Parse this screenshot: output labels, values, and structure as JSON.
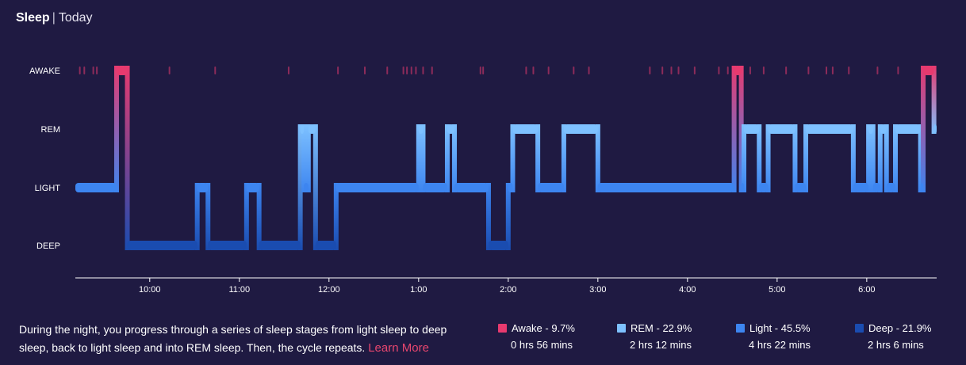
{
  "header": {
    "title": "Sleep",
    "separator": "|",
    "period": "Today"
  },
  "colors": {
    "background": "#1f1a42",
    "awake": "#e73a6f",
    "rem": "#7ec1ff",
    "light": "#3d85f0",
    "deep": "#1a4cb0",
    "link": "#e8466f"
  },
  "chart_data": {
    "type": "hypnogram",
    "stages": [
      "AWAKE",
      "REM",
      "LIGHT",
      "DEEP"
    ],
    "x_ticks": [
      "10:00",
      "11:00",
      "12:00",
      "1:00",
      "2:00",
      "3:00",
      "4:00",
      "5:00",
      "6:00"
    ],
    "x_range_hours": [
      9.17,
      18.78
    ],
    "segments": [
      {
        "stage": "LIGHT",
        "start": 9.17,
        "end": 9.63
      },
      {
        "stage": "AWAKE",
        "start": 9.63,
        "end": 9.75
      },
      {
        "stage": "DEEP",
        "start": 9.75,
        "end": 10.53
      },
      {
        "stage": "LIGHT",
        "start": 10.53,
        "end": 10.65
      },
      {
        "stage": "DEEP",
        "start": 10.65,
        "end": 11.08
      },
      {
        "stage": "LIGHT",
        "start": 11.08,
        "end": 11.22
      },
      {
        "stage": "DEEP",
        "start": 11.22,
        "end": 11.68
      },
      {
        "stage": "REM",
        "start": 11.68,
        "end": 11.72
      },
      {
        "stage": "LIGHT",
        "start": 11.72,
        "end": 11.77
      },
      {
        "stage": "REM",
        "start": 11.77,
        "end": 11.85
      },
      {
        "stage": "DEEP",
        "start": 11.85,
        "end": 12.08
      },
      {
        "stage": "LIGHT",
        "start": 12.08,
        "end": 13.0
      },
      {
        "stage": "REM",
        "start": 13.0,
        "end": 13.05
      },
      {
        "stage": "LIGHT",
        "start": 13.05,
        "end": 13.32
      },
      {
        "stage": "REM",
        "start": 13.32,
        "end": 13.4
      },
      {
        "stage": "LIGHT",
        "start": 13.4,
        "end": 13.78
      },
      {
        "stage": "DEEP",
        "start": 13.78,
        "end": 14.0
      },
      {
        "stage": "LIGHT",
        "start": 14.0,
        "end": 14.05
      },
      {
        "stage": "REM",
        "start": 14.05,
        "end": 14.33
      },
      {
        "stage": "LIGHT",
        "start": 14.33,
        "end": 14.62
      },
      {
        "stage": "REM",
        "start": 14.62,
        "end": 15.0
      },
      {
        "stage": "LIGHT",
        "start": 15.0,
        "end": 16.52
      },
      {
        "stage": "AWAKE",
        "start": 16.52,
        "end": 16.6
      },
      {
        "stage": "LIGHT",
        "start": 16.6,
        "end": 16.63
      },
      {
        "stage": "REM",
        "start": 16.63,
        "end": 16.8
      },
      {
        "stage": "LIGHT",
        "start": 16.8,
        "end": 16.9
      },
      {
        "stage": "REM",
        "start": 16.9,
        "end": 17.2
      },
      {
        "stage": "LIGHT",
        "start": 17.2,
        "end": 17.32
      },
      {
        "stage": "REM",
        "start": 17.32,
        "end": 17.85
      },
      {
        "stage": "LIGHT",
        "start": 17.85,
        "end": 18.02
      },
      {
        "stage": "REM",
        "start": 18.02,
        "end": 18.07
      },
      {
        "stage": "LIGHT",
        "start": 18.07,
        "end": 18.15
      },
      {
        "stage": "REM",
        "start": 18.15,
        "end": 18.22
      },
      {
        "stage": "LIGHT",
        "start": 18.22,
        "end": 18.32
      },
      {
        "stage": "REM",
        "start": 18.32,
        "end": 18.6
      },
      {
        "stage": "LIGHT",
        "start": 18.6,
        "end": 18.63
      },
      {
        "stage": "AWAKE",
        "start": 18.63,
        "end": 18.75
      },
      {
        "stage": "REM",
        "start": 18.75,
        "end": 18.78
      }
    ],
    "awake_blips": [
      9.22,
      9.27,
      9.37,
      9.41,
      10.22,
      10.73,
      11.55,
      12.1,
      12.4,
      12.65,
      12.83,
      12.87,
      12.92,
      12.97,
      13.05,
      13.15,
      13.69,
      13.72,
      14.2,
      14.28,
      14.45,
      14.73,
      14.9,
      15.58,
      15.72,
      15.82,
      15.9,
      16.08,
      16.35,
      16.45,
      16.7,
      16.85,
      17.1,
      17.35,
      17.55,
      17.62,
      17.8,
      18.12,
      18.35
    ]
  },
  "description": {
    "text": "During the night, you progress through a series of sleep stages from light sleep to deep sleep, back to light sleep and into REM sleep. Then, the cycle repeats.",
    "link": "Learn More"
  },
  "legend": [
    {
      "label": "Awake - 9.7%",
      "duration": "0 hrs 56 mins",
      "color": "#e73a6f"
    },
    {
      "label": "REM - 22.9%",
      "duration": "2 hrs 12 mins",
      "color": "#7ec1ff"
    },
    {
      "label": "Light - 45.5%",
      "duration": "4 hrs 22 mins",
      "color": "#3d85f0"
    },
    {
      "label": "Deep - 21.9%",
      "duration": "2 hrs 6 mins",
      "color": "#1a4cb0"
    }
  ]
}
